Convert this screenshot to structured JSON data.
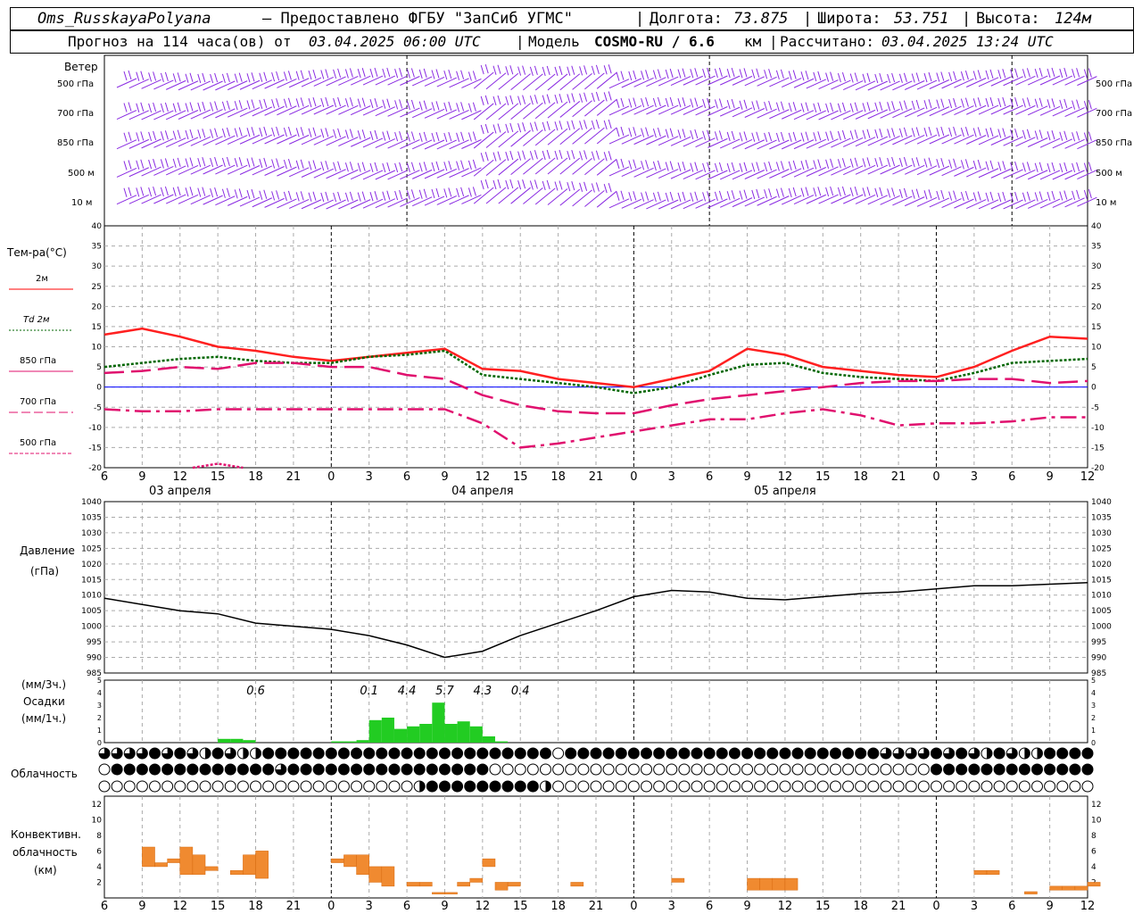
{
  "header": {
    "station": "Oms_RusskayaPolyana",
    "provider": "– Предоставлено ФГБУ \"ЗапСиб УГМС\"",
    "lon_label": "Долгота:",
    "lon_value": "73.875",
    "lat_label": "Широта:",
    "lat_value": "53.751",
    "alt_label": "Высота:",
    "alt_value": "124м",
    "forecast_prefix": "Прогноз на 114 часа(ов) от",
    "forecast_from": "03.04.2025 06:00 UTC",
    "model_label": "Модель",
    "model_name": "COSMO-RU / 6.6",
    "model_unit": "км",
    "calc_label": "Рассчитано:",
    "calc_value": "03.04.2025 13:24 UTC"
  },
  "time_axis": {
    "hours": [
      "6",
      "9",
      "12",
      "15",
      "18",
      "21",
      "0",
      "3",
      "6",
      "9",
      "12",
      "15",
      "18",
      "21",
      "0",
      "3",
      "6",
      "9",
      "12",
      "15",
      "18",
      "21",
      "0",
      "3",
      "6",
      "9",
      "12"
    ],
    "dates": [
      "03 апреля",
      "04 апреля",
      "05 апреля"
    ]
  },
  "wind_panel": {
    "title": "Ветер",
    "levels": [
      "500 гПа",
      "700 гПа",
      "850 гПа",
      "500 м",
      "10  м"
    ],
    "color": "#8a2be2"
  },
  "temp_panel": {
    "title": "Тем-ра(°С)",
    "legend": [
      {
        "label": "2м",
        "color": "#ff0000",
        "style": "solid"
      },
      {
        "label": "Td  2м",
        "color": "#006600",
        "style": "dotted"
      },
      {
        "label": "850 гПа",
        "color": "#e0106e",
        "style": "solid"
      },
      {
        "label": "700 гПа",
        "color": "#e0106e",
        "style": "dashed"
      },
      {
        "label": "500 гПа",
        "color": "#e0106e",
        "style": "dashdot"
      }
    ]
  },
  "pressure_panel": {
    "title": "Давление",
    "unit": "(гПа)"
  },
  "precip_panel": {
    "unit3": "(мм/3ч.)",
    "title": "Осадки",
    "unit1": "(мм/1ч.)",
    "totals": [
      "0.6",
      "0.1",
      "4.4",
      "5.7",
      "4.3",
      "0.4"
    ]
  },
  "cloud_panel": {
    "title": "Облачность"
  },
  "conv_panel": {
    "title1": "Конвективн.",
    "title2": "облачность",
    "unit": "(км)"
  },
  "chart_data": [
    {
      "type": "line",
      "title": "Тем-ра(°С)",
      "xlabel": "",
      "ylabel": "",
      "ylim": [
        -20,
        40
      ],
      "x_hours_from_start": [
        0,
        3,
        6,
        9,
        12,
        15,
        18,
        21,
        24,
        27,
        30,
        33,
        36,
        39,
        42,
        45,
        48,
        51,
        54,
        57,
        60,
        63,
        66,
        69,
        72,
        75,
        78
      ],
      "series": [
        {
          "name": "2м",
          "values": [
            13,
            14.5,
            12.5,
            10,
            9,
            7.5,
            6.5,
            7.5,
            8.5,
            9.5,
            4.5,
            4,
            2,
            1,
            0,
            2,
            4,
            9.5,
            8,
            5,
            4,
            3,
            2.5,
            5,
            9,
            12.5,
            12
          ]
        },
        {
          "name": "Td  2м",
          "values": [
            5,
            6,
            7,
            7.5,
            6.5,
            6,
            6,
            7.5,
            8,
            9,
            3,
            2,
            1,
            0,
            -1.5,
            0,
            3,
            5.5,
            6,
            3.5,
            2.5,
            2,
            1.5,
            3.5,
            6,
            6.5,
            7
          ]
        },
        {
          "name": "850 гПа",
          "values": [
            3.5,
            4,
            5,
            4.5,
            6,
            6,
            5,
            5,
            3,
            2,
            -2,
            -4.5,
            -6,
            -6.5,
            -6.5,
            -4.5,
            -3,
            -2,
            -1,
            0,
            1,
            1.5,
            1.5,
            2,
            2,
            1,
            1.5
          ]
        },
        {
          "name": "700 гПа",
          "values": [
            -5.5,
            -6,
            -6,
            -5.5,
            -5.5,
            -5.5,
            -5.5,
            -5.5,
            -5.5,
            -5.5,
            -9,
            -15,
            -14,
            -12.5,
            -11,
            -9.5,
            -8,
            -8,
            -6.5,
            -5.5,
            -7,
            -9.5,
            -9,
            -9,
            -8.5,
            -7.5,
            -7.5
          ]
        },
        {
          "name": "500 гПа",
          "x": [
            7,
            9,
            11
          ],
          "values": [
            -20,
            -19,
            -20
          ]
        }
      ]
    },
    {
      "type": "line",
      "title": "Давление",
      "ylabel": "(гПа)",
      "ylim": [
        985,
        1040
      ],
      "x_hours_from_start": [
        0,
        3,
        6,
        9,
        12,
        15,
        18,
        21,
        24,
        27,
        30,
        33,
        36,
        39,
        42,
        45,
        48,
        51,
        54,
        57,
        60,
        63,
        66,
        69,
        72,
        75,
        78
      ],
      "series": [
        {
          "name": "Давление",
          "values": [
            1009,
            1007,
            1005,
            1004,
            1001,
            1000,
            999,
            997,
            994,
            990,
            992,
            997,
            1001,
            1005,
            1009.5,
            1011.5,
            1011,
            1009,
            1008.5,
            1009.5,
            1010.5,
            1011,
            1012,
            1013,
            1013,
            1013.5,
            1014
          ]
        }
      ]
    },
    {
      "type": "bar",
      "title": "Осадки",
      "ylabel": "(мм/1ч.)",
      "ylim": [
        0,
        5
      ],
      "x_hours_from_start": [
        9,
        10,
        11,
        18,
        19,
        20,
        21,
        22,
        23,
        24,
        25,
        26,
        27,
        28,
        29,
        30,
        31
      ],
      "values": [
        0.3,
        0.3,
        0.2,
        0.1,
        0.1,
        0.2,
        1.8,
        2.0,
        1.1,
        1.3,
        1.5,
        3.2,
        1.5,
        1.7,
        1.3,
        0.5,
        0.1
      ],
      "period_totals_x": [
        12,
        21,
        24,
        27,
        30,
        33
      ],
      "period_totals": [
        0.6,
        0.1,
        4.4,
        5.7,
        4.3,
        0.4
      ]
    },
    {
      "type": "bar",
      "title": "Конвективн. облачность",
      "ylabel": "(км)",
      "ylim": [
        0,
        12
      ],
      "bars": [
        {
          "x": 3,
          "base": 4,
          "top": 6.5
        },
        {
          "x": 4,
          "base": 4,
          "top": 4.5
        },
        {
          "x": 5,
          "base": 4.5,
          "top": 5
        },
        {
          "x": 6,
          "base": 3,
          "top": 6.5
        },
        {
          "x": 7,
          "base": 3,
          "top": 5.5
        },
        {
          "x": 8,
          "base": 3.5,
          "top": 4
        },
        {
          "x": 10,
          "base": 3,
          "top": 3.5
        },
        {
          "x": 11,
          "base": 3,
          "top": 5.5
        },
        {
          "x": 12,
          "base": 2.5,
          "top": 6
        },
        {
          "x": 18,
          "base": 4.5,
          "top": 5
        },
        {
          "x": 19,
          "base": 4,
          "top": 5.5
        },
        {
          "x": 20,
          "base": 3,
          "top": 5.5
        },
        {
          "x": 21,
          "base": 2,
          "top": 4
        },
        {
          "x": 22,
          "base": 1.5,
          "top": 4
        },
        {
          "x": 24,
          "base": 1.5,
          "top": 2
        },
        {
          "x": 25,
          "base": 1.5,
          "top": 2
        },
        {
          "x": 26,
          "base": 0.5,
          "top": 0.7
        },
        {
          "x": 27,
          "base": 0.5,
          "top": 0.7
        },
        {
          "x": 28,
          "base": 1.5,
          "top": 2
        },
        {
          "x": 29,
          "base": 2,
          "top": 2.5
        },
        {
          "x": 30,
          "base": 4,
          "top": 5
        },
        {
          "x": 31,
          "base": 1,
          "top": 2
        },
        {
          "x": 32,
          "base": 1.5,
          "top": 2
        },
        {
          "x": 37,
          "base": 1.5,
          "top": 2
        },
        {
          "x": 45,
          "base": 2,
          "top": 2.5
        },
        {
          "x": 51,
          "base": 1,
          "top": 2.5
        },
        {
          "x": 52,
          "base": 1,
          "top": 2.5
        },
        {
          "x": 53,
          "base": 1,
          "top": 2.5
        },
        {
          "x": 54,
          "base": 1,
          "top": 2.5
        },
        {
          "x": 69,
          "base": 3,
          "top": 3.5
        },
        {
          "x": 70,
          "base": 3,
          "top": 3.5
        },
        {
          "x": 73,
          "base": 0.5,
          "top": 0.8
        },
        {
          "x": 75,
          "base": 1,
          "top": 1.5
        },
        {
          "x": 76,
          "base": 1,
          "top": 1.5
        },
        {
          "x": 77,
          "base": 1,
          "top": 1.5
        },
        {
          "x": 78,
          "base": 1.5,
          "top": 2
        }
      ]
    }
  ]
}
